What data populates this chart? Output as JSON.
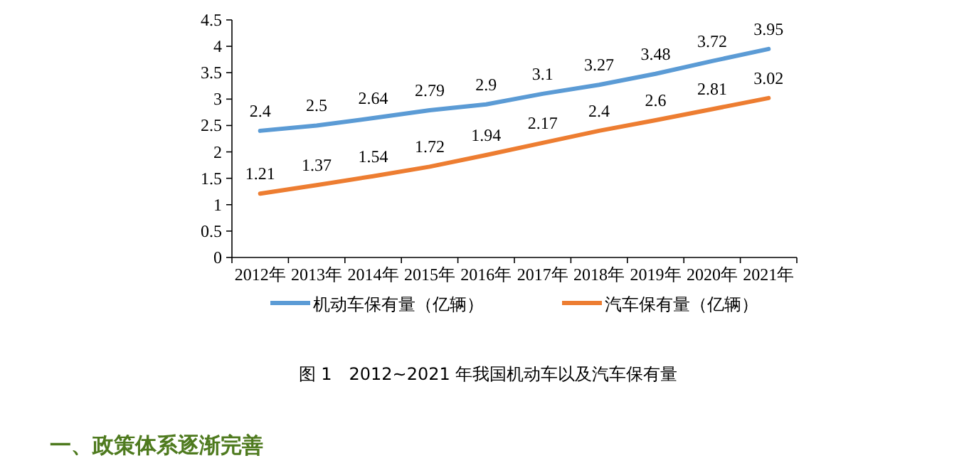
{
  "chart_data": {
    "type": "line",
    "title": "图 1　2012~2021 年我国机动车以及汽车保有量",
    "categories": [
      "2012年",
      "2013年",
      "2014年",
      "2015年",
      "2016年",
      "2017年",
      "2018年",
      "2019年",
      "2020年",
      "2021年"
    ],
    "series": [
      {
        "name": "机动车保有量（亿辆）",
        "color": "#5b9bd5",
        "values": [
          2.4,
          2.5,
          2.64,
          2.79,
          2.9,
          3.1,
          3.27,
          3.48,
          3.72,
          3.95
        ]
      },
      {
        "name": "汽车保有量（亿辆）",
        "color": "#ed7d31",
        "values": [
          1.21,
          1.37,
          1.54,
          1.72,
          1.94,
          2.17,
          2.4,
          2.6,
          2.81,
          3.02
        ]
      }
    ],
    "ylim": [
      0,
      4.5
    ],
    "yticks": [
      0,
      0.5,
      1,
      1.5,
      2,
      2.5,
      3,
      3.5,
      4,
      4.5
    ],
    "data_labels": true,
    "legend": "bottom",
    "grid": false,
    "annotations": [
      "一、政策体系逐渐完善"
    ]
  }
}
